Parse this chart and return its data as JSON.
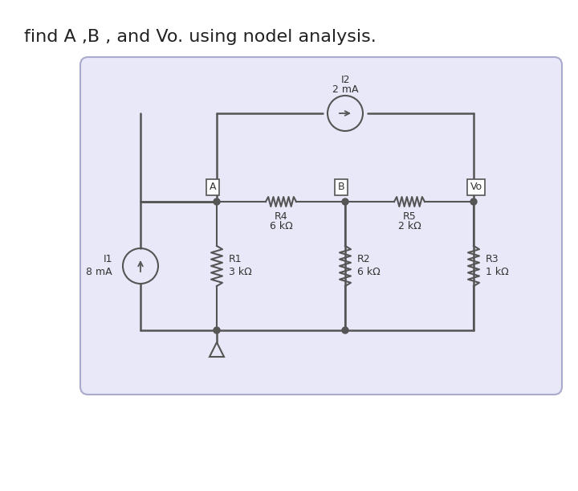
{
  "title": "find A ,B , and Vo. using nodel analysis.",
  "title_fontsize": 16,
  "bg_color": "#ffffff",
  "box_color": "#e8e8f8",
  "box_edge_color": "#aaaacc",
  "wire_color": "#555555",
  "component_color": "#555555",
  "label_color": "#333333",
  "node_label_bg": "#ffffff",
  "node_label_border": "#555555",
  "I1_label": "I1",
  "I1_value": "8 mA",
  "I2_label": "I2",
  "I2_value": "2 mA",
  "R1_label": "R1",
  "R1_value": "3 kΩ",
  "R2_label": "R2",
  "R2_value": "6 kΩ",
  "R3_label": "R3",
  "R3_value": "1 kΩ",
  "R4_label": "R4",
  "R4_value": "6 kΩ",
  "R5_label": "R5",
  "R5_value": "2 kΩ",
  "node_A": "A",
  "node_B": "B",
  "node_Vo": "Vo"
}
